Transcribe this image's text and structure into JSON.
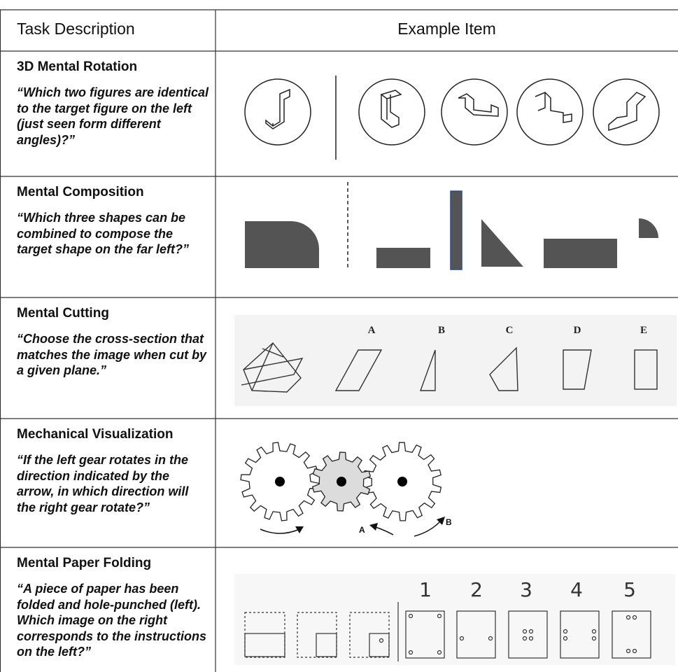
{
  "header": {
    "columns": [
      "Task Description",
      "Example Item"
    ]
  },
  "rows": [
    {
      "title": "3D Mental Rotation",
      "description": "“Which two figures are identical to the target figure on the left (just seen form different angles)?”"
    },
    {
      "title": "Mental Composition",
      "description": "“Which three shapes can be combined to compose the target shape on the far left?”"
    },
    {
      "title": "Mental Cutting",
      "description": "“Choose the cross-section that matches the image when cut by a given plane.”",
      "labels": [
        "A",
        "B",
        "C",
        "D",
        "E"
      ]
    },
    {
      "title": "Mechanical Visualization",
      "description": "“If the left gear rotates in the direction indicated by the arrow, in which direction will the right gear rotate?”",
      "labels": [
        "A",
        "B"
      ]
    },
    {
      "title": "Mental Paper Folding",
      "description": "“A piece of paper has been folded and hole-punched (left). Which image on the right corresponds to the instructions on the left?”",
      "labels": [
        "1",
        "2",
        "3",
        "4",
        "5"
      ]
    }
  ]
}
